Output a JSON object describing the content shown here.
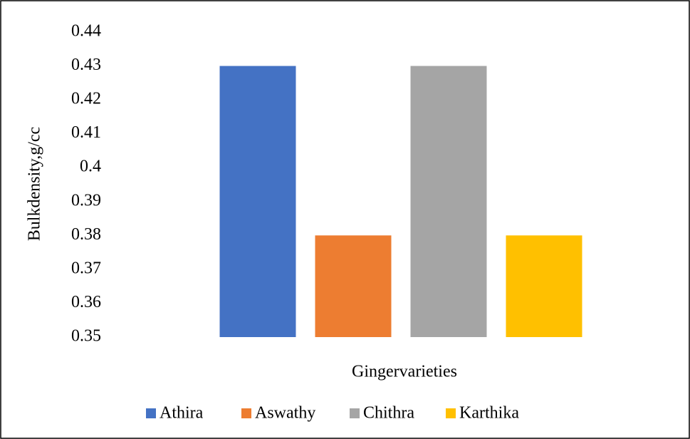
{
  "chart_data": {
    "type": "bar",
    "x_label": "Gingervarieties",
    "y_label": "Bulkdensity,g/cc",
    "categories": [
      null
    ],
    "series": [
      {
        "name": "Athira",
        "color": "#4472c4",
        "values": [
          0.43
        ]
      },
      {
        "name": "Aswathy",
        "color": "#ed7d31",
        "values": [
          0.38
        ]
      },
      {
        "name": "Chithra",
        "color": "#a5a5a5",
        "values": [
          0.43
        ]
      },
      {
        "name": "Karthika",
        "color": "#ffc000",
        "values": [
          0.38
        ]
      }
    ],
    "ylim": [
      0.35,
      0.44
    ],
    "yticks": [
      0.35,
      0.36,
      0.37,
      0.38,
      0.39,
      0.4,
      0.41,
      0.42,
      0.43,
      0.44
    ],
    "grid": false,
    "legend": "bottom"
  }
}
